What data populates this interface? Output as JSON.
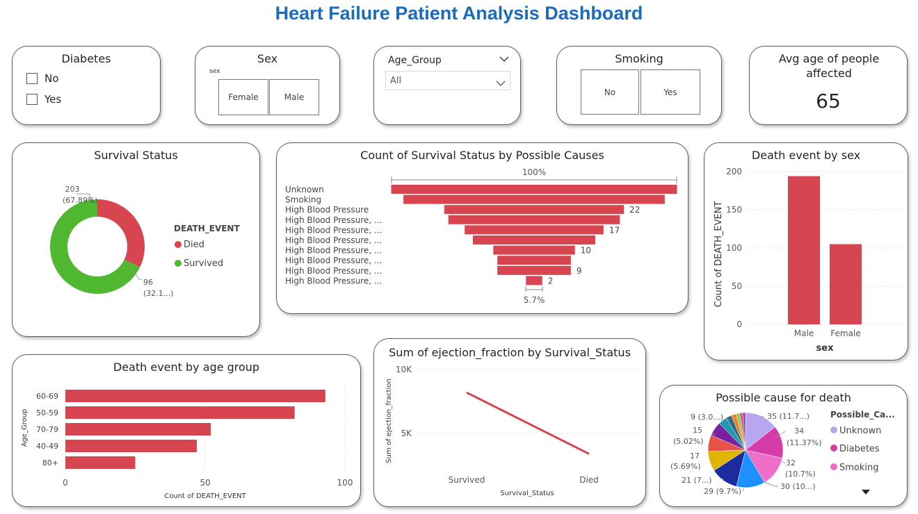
{
  "title": "Heart Failure Patient Analysis Dashboard",
  "colors": {
    "bar": "#d64550",
    "survived": "#4fb830",
    "died": "#d64550",
    "title": "#1a6bbd"
  },
  "slicers": {
    "diabetes": {
      "title": "Diabetes",
      "options": [
        "No",
        "Yes"
      ]
    },
    "sex": {
      "title": "Sex",
      "field": "sex",
      "options": [
        "Female",
        "Male"
      ]
    },
    "age_group": {
      "title": "Age_Group",
      "value": "All"
    },
    "smoking": {
      "title": "Smoking",
      "options": [
        "No",
        "Yes"
      ]
    }
  },
  "kpi": {
    "title": "Avg age of people affected",
    "value": "65"
  },
  "chart_data": [
    {
      "id": "survival_status",
      "type": "pie",
      "title": "Survival Status",
      "legend_title": "DEATH_EVENT",
      "legend_position": "right",
      "labels": [
        "Died",
        "Survived"
      ],
      "values": [
        96,
        203
      ],
      "colors": [
        "#d64550",
        "#4fb830"
      ],
      "data_labels": [
        [
          "96",
          "(32.1...)"
        ],
        [
          "203",
          "(67.89%)"
        ]
      ]
    },
    {
      "id": "possible_causes_funnel",
      "type": "bar",
      "title": "Count of Survival Status by Possible Causes",
      "categories": [
        "Unknown",
        "Smoking",
        "High Blood Pressure",
        "High Blood Pressure, ...",
        "High Blood Pressure, ...",
        "High Blood Pressure, ...",
        "High Blood Pressure, ...",
        "High Blood Pressure, ...",
        "High Blood Pressure, ...",
        "High Blood Pressure, ..."
      ],
      "values": [
        35,
        32,
        22,
        21,
        17,
        15,
        10,
        9,
        9,
        2
      ],
      "value_labels": [
        "",
        "",
        "22",
        "",
        "17",
        "",
        "10",
        "",
        "9",
        "2"
      ],
      "top_label": "100%",
      "bottom_label": "5.7%"
    },
    {
      "id": "death_by_sex",
      "type": "bar",
      "title": "Death event by sex",
      "categories": [
        "Male",
        "Female"
      ],
      "values": [
        194,
        105
      ],
      "xlabel": "sex",
      "ylabel": "Count of DEATH_EVENT",
      "ylim": [
        0,
        200
      ],
      "yticks": [
        0,
        50,
        100,
        150,
        200
      ]
    },
    {
      "id": "death_by_age_group",
      "type": "bar",
      "title": "Death event by age group",
      "categories": [
        "60-69",
        "50-59",
        "70-79",
        "40-49",
        "80+"
      ],
      "values": [
        93,
        82,
        52,
        47,
        25
      ],
      "xlabel": "Count of DEATH_EVENT",
      "ylabel": "Age_Group",
      "xlim": [
        0,
        100
      ],
      "xticks": [
        0,
        50,
        100
      ]
    },
    {
      "id": "ejection_fraction",
      "type": "line",
      "title": "Sum of ejection_fraction by Survival_Status",
      "categories": [
        "Survived",
        "Died"
      ],
      "values": [
        8200,
        3400
      ],
      "xlabel": "Survival_Status",
      "ylabel": "Sum of ejection_fraction",
      "ylim": [
        0,
        10000
      ],
      "ytick_labels": [
        "5K",
        "10K"
      ],
      "yticks": [
        5000,
        10000
      ]
    },
    {
      "id": "possible_cause_pie",
      "type": "pie",
      "title": "Possible cause for death",
      "legend_title": "Possible_Ca...",
      "legend_position": "right",
      "legend_entries": [
        "Unknown",
        "Diabetes",
        "Smoking"
      ],
      "values": [
        35,
        34,
        32,
        30,
        29,
        21,
        17,
        15,
        9,
        6,
        5,
        4,
        3,
        3
      ],
      "colors": [
        "#b8a6f0",
        "#d63ca8",
        "#ee6ec8",
        "#1e90ff",
        "#1c2b9e",
        "#e0b400",
        "#e8504a",
        "#7b1fa2",
        "#1f9bab",
        "#2e6b8a",
        "#f07f2e",
        "#8fd14f",
        "#e84a7f",
        "#7a4fbf"
      ],
      "data_labels": [
        [
          "35 (11.7...)"
        ],
        [
          "34",
          "(11.37%)"
        ],
        [
          "32",
          "(10.7%)"
        ],
        [
          "30 (10...)"
        ],
        [
          "29 (9.7%)"
        ],
        [
          "21 (7...)"
        ],
        [
          "17",
          "(5.69%)"
        ],
        [
          "15",
          "(5.02%)"
        ],
        [
          "9 (3.0...)"
        ]
      ]
    }
  ]
}
